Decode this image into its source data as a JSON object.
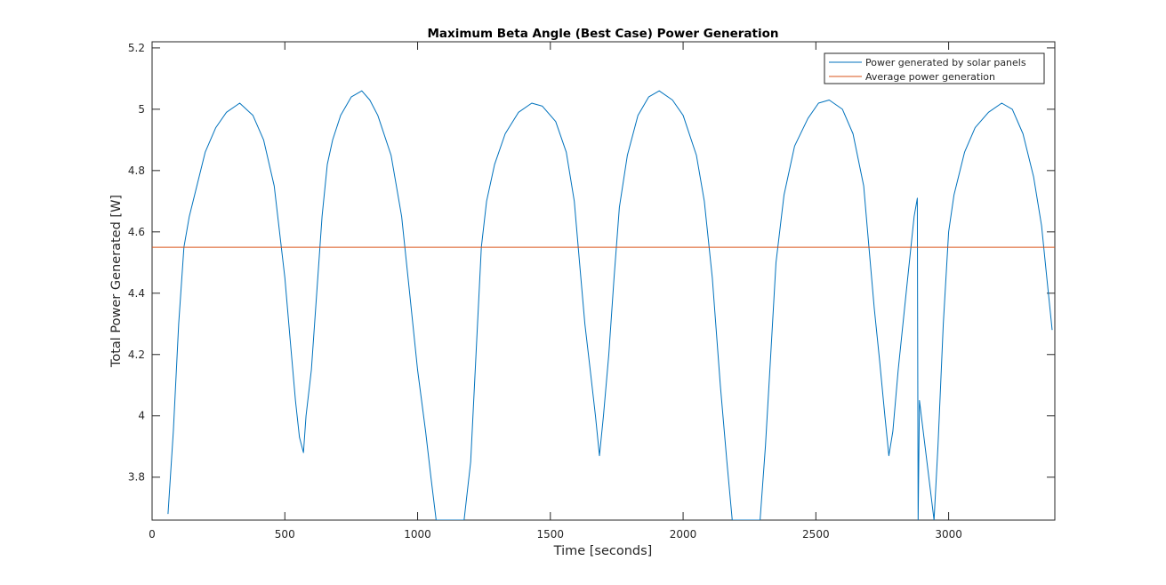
{
  "chart_data": {
    "type": "line",
    "title": "Maximum Beta Angle (Best Case) Power Generation",
    "xlabel": "Time [seconds]",
    "ylabel": "Total Power Generated [W]",
    "xlim": [
      0,
      3400
    ],
    "ylim": [
      3.66,
      5.22
    ],
    "xticks": [
      0,
      500,
      1000,
      1500,
      2000,
      2500,
      3000
    ],
    "xtick_labels": [
      "0",
      "500",
      "1000",
      "1500",
      "2000",
      "2500",
      "3000"
    ],
    "yticks": [
      3.8,
      4,
      4.2,
      4.4,
      4.6,
      4.8,
      5,
      5.2
    ],
    "ytick_labels": [
      "3.8",
      "4",
      "4.2",
      "4.4",
      "4.6",
      "4.8",
      "5",
      "5.2"
    ],
    "grid": false,
    "legend_location": "top-right",
    "series": [
      {
        "name": "Power generated by solar panels",
        "color": "#0072BD",
        "x": [
          60,
          80,
          100,
          120,
          140,
          160,
          200,
          240,
          280,
          330,
          380,
          420,
          460,
          480,
          500,
          520,
          540,
          555,
          570,
          580,
          600,
          620,
          640,
          660,
          680,
          710,
          750,
          790,
          820,
          850,
          900,
          940,
          970,
          1000,
          1030,
          1050,
          1070,
          1175,
          1200,
          1220,
          1240,
          1260,
          1290,
          1330,
          1380,
          1430,
          1470,
          1520,
          1560,
          1590,
          1610,
          1630,
          1650,
          1670,
          1685,
          1700,
          1720,
          1740,
          1760,
          1790,
          1830,
          1870,
          1910,
          1960,
          2000,
          2050,
          2080,
          2110,
          2140,
          2165,
          2185,
          2290,
          2310,
          2330,
          2350,
          2380,
          2420,
          2470,
          2510,
          2550,
          2600,
          2640,
          2680,
          2700,
          2720,
          2740,
          2760,
          2775,
          2790,
          2810,
          2840,
          2870,
          2882,
          2885,
          2890,
          2945,
          2960,
          2980,
          3000,
          3020,
          3060,
          3100,
          3150,
          3200,
          3240,
          3280,
          3320,
          3350,
          3370,
          3390
        ],
        "values": [
          3.68,
          3.95,
          4.3,
          4.55,
          4.65,
          4.72,
          4.86,
          4.94,
          4.99,
          5.02,
          4.98,
          4.9,
          4.75,
          4.6,
          4.45,
          4.25,
          4.05,
          3.93,
          3.88,
          4.0,
          4.15,
          4.4,
          4.65,
          4.82,
          4.9,
          4.98,
          5.04,
          5.06,
          5.03,
          4.98,
          4.85,
          4.65,
          4.4,
          4.15,
          3.95,
          3.8,
          3.66,
          3.66,
          3.85,
          4.2,
          4.55,
          4.7,
          4.82,
          4.92,
          4.99,
          5.02,
          5.01,
          4.96,
          4.86,
          4.7,
          4.5,
          4.3,
          4.15,
          4.0,
          3.87,
          4.0,
          4.2,
          4.45,
          4.68,
          4.85,
          4.98,
          5.04,
          5.06,
          5.03,
          4.98,
          4.85,
          4.7,
          4.45,
          4.1,
          3.85,
          3.66,
          3.66,
          3.9,
          4.2,
          4.5,
          4.72,
          4.88,
          4.97,
          5.02,
          5.03,
          5.0,
          4.92,
          4.75,
          4.55,
          4.35,
          4.18,
          4.0,
          3.87,
          3.95,
          4.15,
          4.4,
          4.65,
          4.71,
          3.66,
          4.05,
          3.66,
          3.9,
          4.3,
          4.6,
          4.72,
          4.86,
          4.94,
          4.99,
          5.02,
          5.0,
          4.92,
          4.78,
          4.62,
          4.45,
          4.28
        ]
      },
      {
        "name": "Average power generation",
        "color": "#D95319",
        "x": [
          0,
          3400
        ],
        "values": [
          4.55,
          4.55
        ]
      }
    ]
  }
}
